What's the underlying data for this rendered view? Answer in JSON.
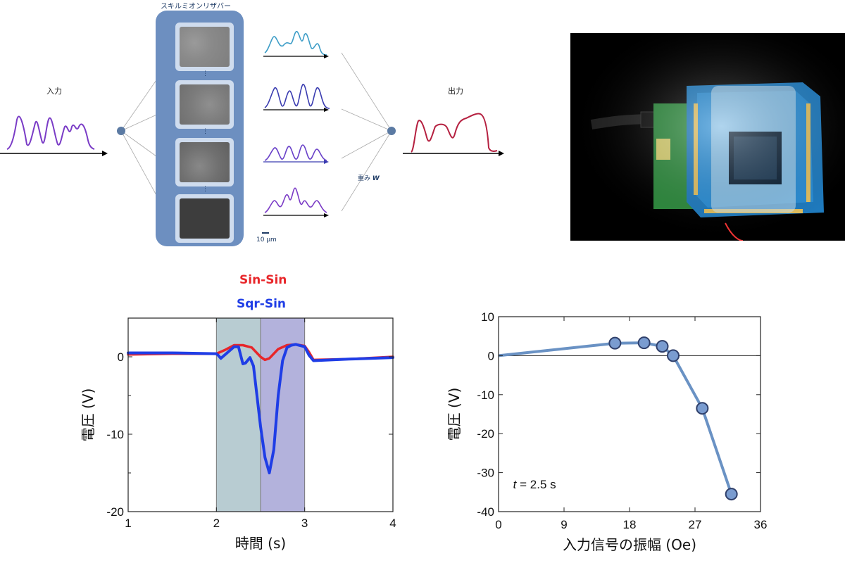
{
  "diagram": {
    "reservoir_title": "スキルミオンリザバー",
    "input_label": "入力",
    "output_label": "出力",
    "weight_label_jp": "重み",
    "weight_symbol": "W",
    "scale_bar": "10 μm",
    "dots": "⋮"
  },
  "chart_data": [
    {
      "type": "line",
      "title": "",
      "legend": [
        "Sin-Sin",
        "Sqr-Sin"
      ],
      "xlabel": "時間 (s)",
      "ylabel": "電圧 (V)",
      "xlim": [
        1,
        4
      ],
      "ylim": [
        -20,
        5
      ],
      "xticks": [
        "1",
        "2",
        "3",
        "4"
      ],
      "yticks": [
        "0",
        "-10",
        "-20"
      ],
      "shaded_regions": [
        {
          "x": [
            2,
            2.5
          ],
          "color": "#b8ccd2"
        },
        {
          "x": [
            2.5,
            3
          ],
          "color": "#b3b2dc"
        }
      ],
      "series": [
        {
          "name": "Sin-Sin",
          "color": "#e8262a",
          "x": [
            1.0,
            1.5,
            2.0,
            2.1,
            2.2,
            2.3,
            2.4,
            2.5,
            2.55,
            2.6,
            2.7,
            2.8,
            2.9,
            3.0,
            3.05,
            3.1,
            3.5,
            4.0
          ],
          "y": [
            0.3,
            0.4,
            0.4,
            0.9,
            1.5,
            1.5,
            1.2,
            0.0,
            -0.4,
            -0.2,
            1.0,
            1.5,
            1.6,
            1.4,
            0.6,
            -0.4,
            -0.3,
            0.0
          ]
        },
        {
          "name": "Sqr-Sin",
          "color": "#1f3de6",
          "x": [
            1.0,
            1.5,
            2.0,
            2.02,
            2.05,
            2.1,
            2.2,
            2.25,
            2.3,
            2.33,
            2.38,
            2.42,
            2.5,
            2.55,
            2.6,
            2.65,
            2.7,
            2.75,
            2.8,
            2.85,
            2.9,
            3.0,
            3.05,
            3.1,
            3.5,
            4.0
          ],
          "y": [
            0.5,
            0.5,
            0.4,
            0.2,
            -0.2,
            0.3,
            1.3,
            1.3,
            -0.9,
            -0.8,
            -0.1,
            -1.2,
            -9.0,
            -13.0,
            -15.0,
            -12.0,
            -5.0,
            -0.5,
            1.2,
            1.5,
            1.6,
            1.3,
            0.2,
            -0.5,
            -0.3,
            -0.1
          ]
        }
      ]
    },
    {
      "type": "line",
      "title": "",
      "xlabel": "入力信号の振幅 (Oe)",
      "ylabel": "電圧 (V)",
      "xlim": [
        0,
        36
      ],
      "ylim": [
        -40,
        10
      ],
      "xticks": [
        "0",
        "9",
        "18",
        "27",
        "36"
      ],
      "yticks": [
        "10",
        "0",
        "-10",
        "-20",
        "-30",
        "-40"
      ],
      "annotation": {
        "var": "t",
        "text": " = 2.5 s"
      },
      "series": [
        {
          "name": "",
          "color": "#6a92c4",
          "x": [
            0,
            16,
            20,
            22.5,
            24,
            28,
            32
          ],
          "y": [
            0,
            3.2,
            3.3,
            2.4,
            0.0,
            -13.5,
            -35.5
          ],
          "markers_from_index": 1
        }
      ]
    }
  ]
}
